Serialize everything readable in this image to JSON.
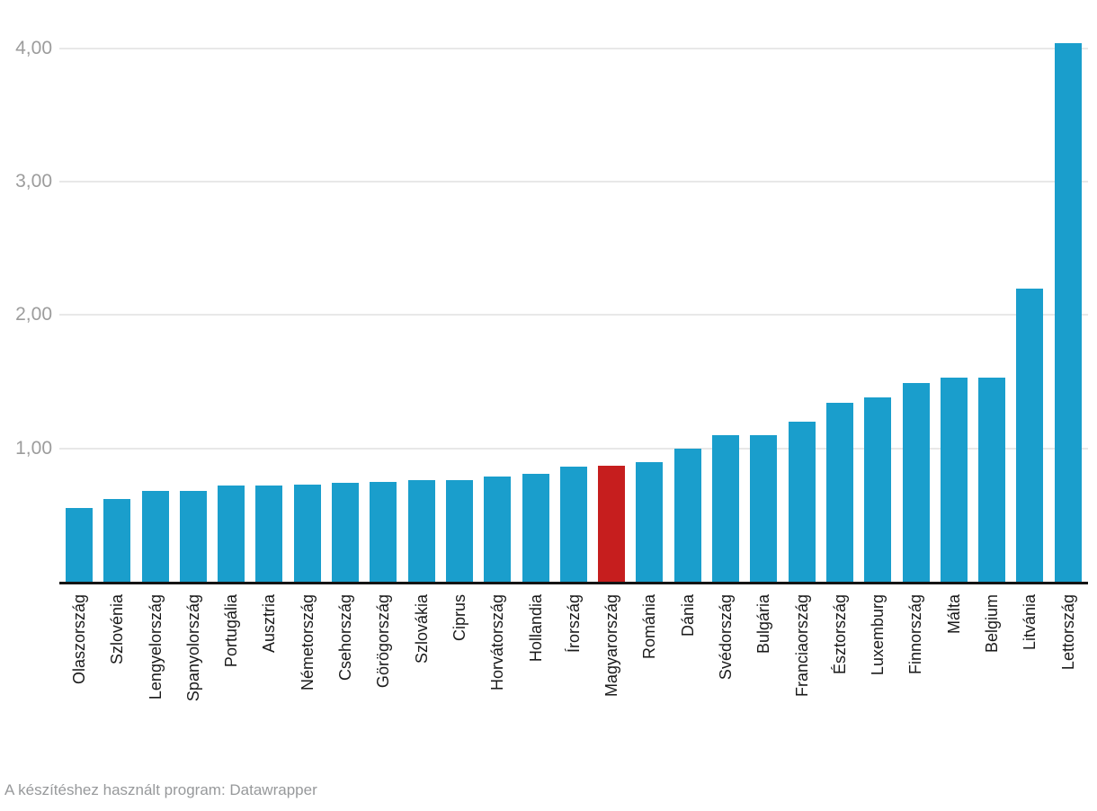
{
  "chart_data": {
    "type": "bar",
    "categories": [
      "Olaszország",
      "Szlovénia",
      "Lengyelország",
      "Spanyolország",
      "Portugália",
      "Ausztria",
      "Németország",
      "Csehország",
      "Görögország",
      "Szlovákia",
      "Ciprus",
      "Horvátország",
      "Hollandia",
      "Írország",
      "Magyarország",
      "Románia",
      "Dánia",
      "Svédország",
      "Bulgária",
      "Franciaország",
      "Észtország",
      "Luxemburg",
      "Finnország",
      "Málta",
      "Belgium",
      "Litvánia",
      "Lettország"
    ],
    "values": [
      0.55,
      0.62,
      0.68,
      0.68,
      0.72,
      0.72,
      0.73,
      0.74,
      0.75,
      0.76,
      0.76,
      0.79,
      0.81,
      0.86,
      0.87,
      0.9,
      1.0,
      1.1,
      1.1,
      1.2,
      1.34,
      1.38,
      1.49,
      1.53,
      1.53,
      2.2,
      4.04
    ],
    "highlight_category": "Magyarország",
    "title": "",
    "xlabel": "",
    "ylabel": "",
    "ylim": [
      0,
      4.36
    ],
    "y_ticks": [
      {
        "value": 1,
        "label": "1,00"
      },
      {
        "value": 2,
        "label": "2,00"
      },
      {
        "value": 3,
        "label": "3,00"
      },
      {
        "value": 4,
        "label": "4,00"
      }
    ],
    "grid": "horizontal-only",
    "legend": "none",
    "bar_color": "#1a9ecc",
    "highlight_color": "#c61e1e",
    "axis_color": "#141414",
    "gridline_color": "#e8e8e8",
    "tick_label_color": "#9c9c9c",
    "category_label_color": "#1a1a1a"
  },
  "footer": {
    "credit": "A készítéshez használt program: Datawrapper",
    "credit_color": "#97999b"
  }
}
